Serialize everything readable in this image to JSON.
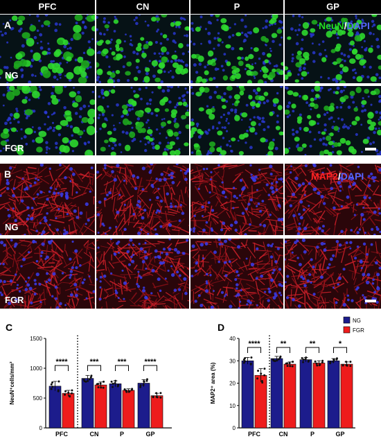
{
  "columns": [
    "PFC",
    "CN",
    "P",
    "GP"
  ],
  "panelA": {
    "letter": "A",
    "rows": [
      "NG",
      "FGR"
    ],
    "stain_primary": "NeuN",
    "stain_sep": "/",
    "stain_secondary": "DAPI",
    "primary_color": "#22dd22",
    "secondary_color": "#3344ee"
  },
  "panelB": {
    "letter": "B",
    "rows": [
      "NG",
      "FGR"
    ],
    "stain_primary": "MAP2",
    "stain_sep": "/",
    "stain_secondary": "DAPI",
    "primary_color": "#ee2222",
    "secondary_color": "#3344ee"
  },
  "chart_data": [
    {
      "panel": "C",
      "type": "bar",
      "categories": [
        "PFC",
        "CN",
        "P",
        "GP"
      ],
      "ylabel": "NeuN⁺cells/mm²",
      "ylim": [
        0,
        1500
      ],
      "yticks": [
        0,
        500,
        1000,
        1500
      ],
      "series": [
        {
          "name": "NG",
          "color": "#1c1c8c",
          "values": [
            700,
            830,
            740,
            750
          ],
          "errors": [
            80,
            50,
            50,
            60
          ]
        },
        {
          "name": "FGR",
          "color": "#ee1c1c",
          "values": [
            580,
            720,
            630,
            540
          ],
          "errors": [
            50,
            50,
            25,
            40
          ]
        }
      ],
      "significance": [
        "****",
        "***",
        "***",
        "****"
      ]
    },
    {
      "panel": "D",
      "type": "bar",
      "categories": [
        "PFC",
        "CN",
        "P",
        "GP"
      ],
      "ylabel": "MAP2⁺ area (%)",
      "ylim": [
        0,
        40
      ],
      "yticks": [
        0,
        10,
        20,
        30,
        40
      ],
      "series": [
        {
          "name": "NG",
          "color": "#1c1c8c",
          "values": [
            30,
            31,
            30.5,
            30
          ],
          "errors": [
            1.5,
            1,
            1,
            1
          ]
        },
        {
          "name": "FGR",
          "color": "#ee1c1c",
          "values": [
            23.5,
            28.5,
            29,
            28.5
          ],
          "errors": [
            3,
            1,
            1,
            1
          ]
        }
      ],
      "significance": [
        "****",
        "**",
        "**",
        "*"
      ]
    }
  ]
}
